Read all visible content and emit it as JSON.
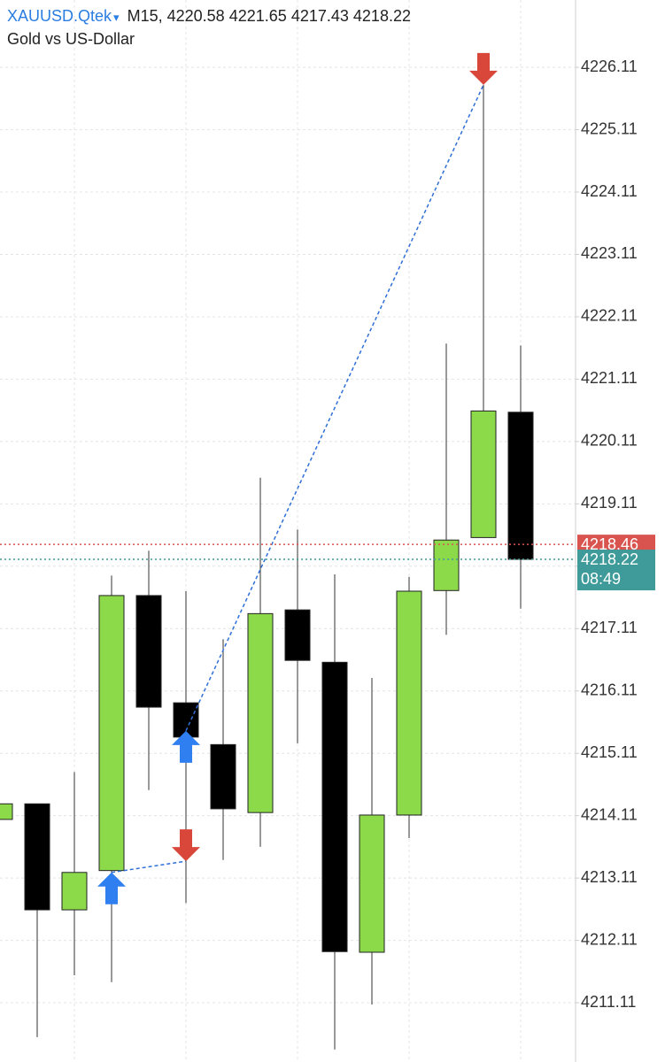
{
  "chart_data": {
    "type": "candlestick",
    "symbol": "XAUUSD.Qtek",
    "timeframe": "M15,",
    "description": "Gold vs US-Dollar",
    "open": [
      4214.05,
      4214.3,
      4212.6,
      4213.23,
      4217.64,
      4215.92,
      4215.25,
      4214.16,
      4217.41,
      4216.57,
      4211.92,
      4214.12,
      4217.72,
      4218.57,
      4220.58
    ],
    "high": [
      4214.3,
      4214.3,
      4214.81,
      4217.96,
      4218.36,
      4217.71,
      4216.94,
      4219.53,
      4218.7,
      4217.98,
      4216.32,
      4217.94,
      4221.68,
      4225.83,
      4221.65
    ],
    "low": [
      4214.05,
      4210.56,
      4211.55,
      4211.44,
      4214.52,
      4212.71,
      4213.4,
      4213.61,
      4215.27,
      4210.36,
      4211.08,
      4213.75,
      4217.01,
      4218.57,
      4217.43
    ],
    "close": [
      4214.3,
      4212.6,
      4213.2,
      4217.64,
      4215.85,
      4215.37,
      4214.22,
      4217.35,
      4216.6,
      4211.93,
      4214.12,
      4217.71,
      4218.53,
      4220.6,
      4218.22
    ],
    "up_color": "#8cd94a",
    "down_color": "#000000",
    "ylim": [
      4210.16,
      4227.19
    ],
    "yticks": [
      4211.11,
      4212.11,
      4213.11,
      4214.11,
      4215.11,
      4216.11,
      4217.11,
      4218.11,
      4219.11,
      4220.11,
      4221.11,
      4222.11,
      4223.11,
      4224.11,
      4225.11,
      4226.11
    ],
    "grid": true,
    "price_lines": [
      {
        "value": 4218.46,
        "color": "#d9534f"
      },
      {
        "value": 4218.22,
        "color": "#3f9a9a",
        "countdown": "08:49"
      }
    ],
    "markers": [
      {
        "x": 3,
        "price": 4213.2,
        "direction": "buy"
      },
      {
        "x": 5,
        "price": 4213.38,
        "direction": "sell"
      },
      {
        "x": 5,
        "price": 4215.47,
        "direction": "buy"
      },
      {
        "x": 13,
        "price": 4225.83,
        "direction": "sell"
      }
    ],
    "buy_color": "#2f7ff0",
    "sell_color": "#d9473a",
    "trade_line_color": "#2f6fd6"
  }
}
